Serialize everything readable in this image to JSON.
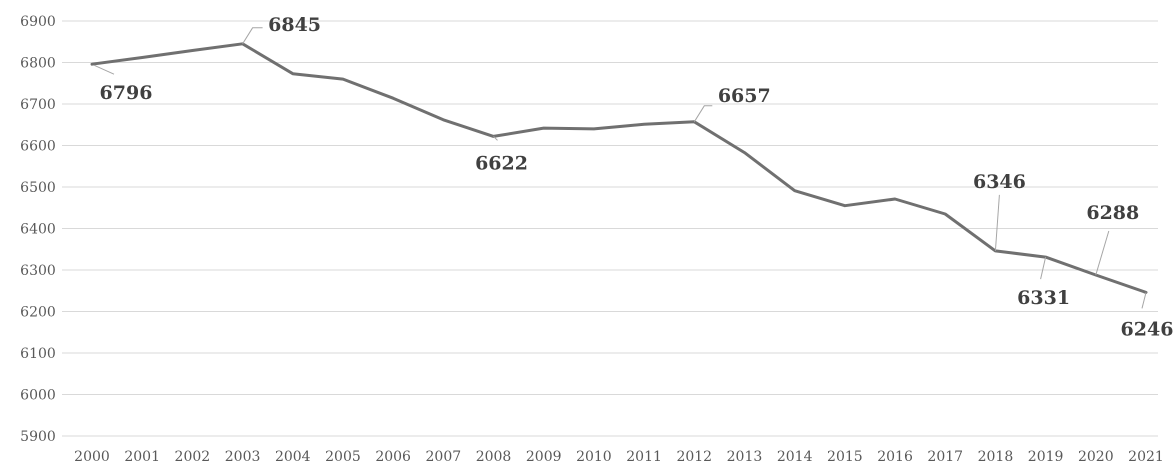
{
  "chart_data": {
    "type": "line",
    "title": "",
    "xlabel": "",
    "ylabel": "",
    "x": [
      "2000",
      "2001",
      "2002",
      "2003",
      "2004",
      "2005",
      "2006",
      "2007",
      "2008",
      "2009",
      "2010",
      "2011",
      "2012",
      "2013",
      "2014",
      "2015",
      "2016",
      "2017",
      "2018",
      "2019",
      "2020",
      "2021"
    ],
    "series": [
      {
        "values": [
          6796,
          6812,
          6829,
          6845,
          6773,
          6760,
          6714,
          6662,
          6622,
          6642,
          6640,
          6651,
          6657,
          6583,
          6491,
          6455,
          6471,
          6435,
          6346,
          6331,
          6288,
          6246
        ]
      }
    ],
    "yticks": [
      "5900",
      "6000",
      "6100",
      "6200",
      "6300",
      "6400",
      "6500",
      "6600",
      "6700",
      "6800",
      "6900"
    ],
    "ylim": [
      5900,
      6900
    ],
    "grid": true,
    "legend": "none",
    "line_color": "#707070",
    "data_labels": [
      {
        "index": 0,
        "text": "6796"
      },
      {
        "index": 3,
        "text": "6845"
      },
      {
        "index": 8,
        "text": "6622"
      },
      {
        "index": 12,
        "text": "6657"
      },
      {
        "index": 18,
        "text": "6346"
      },
      {
        "index": 19,
        "text": "6331"
      },
      {
        "index": 20,
        "text": "6288"
      },
      {
        "index": 21,
        "text": "6246"
      }
    ]
  }
}
